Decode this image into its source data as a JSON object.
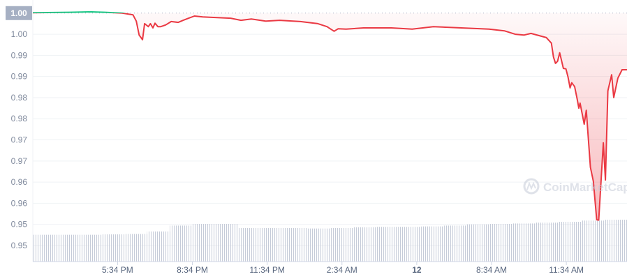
{
  "chart_data": {
    "type": "line",
    "title": "",
    "xlabel": "",
    "ylabel": "",
    "reference_price": 1.005,
    "reference_label": "1.00",
    "ylim": [
      0.9462,
      1.0081
    ],
    "xlim": [
      "14:10",
      "14:00"
    ],
    "grid": true,
    "y_ticks": [
      {
        "value": 1.0,
        "label": "1.00"
      },
      {
        "value": 0.995,
        "label": "0.99"
      },
      {
        "value": 0.99,
        "label": "0.99"
      },
      {
        "value": 0.985,
        "label": "0.98"
      },
      {
        "value": 0.98,
        "label": "0.98"
      },
      {
        "value": 0.975,
        "label": "0.97"
      },
      {
        "value": 0.97,
        "label": "0.97"
      },
      {
        "value": 0.965,
        "label": "0.96"
      },
      {
        "value": 0.96,
        "label": "0.96"
      },
      {
        "value": 0.955,
        "label": "0.95"
      },
      {
        "value": 0.95,
        "label": "0.95"
      }
    ],
    "x_ticks": [
      {
        "time": "17:34",
        "label": "5:34 PM"
      },
      {
        "time": "20:34",
        "label": "8:34 PM"
      },
      {
        "time": "23:34",
        "label": "11:34 PM"
      },
      {
        "time": "02:34",
        "label": "2:34 AM"
      },
      {
        "time": "05:34",
        "label": "12"
      },
      {
        "time": "08:34",
        "label": "8:34 AM"
      },
      {
        "time": "11:34",
        "label": "11:34 AM"
      }
    ],
    "colors": {
      "up": "#16c784",
      "down": "#ea3943",
      "volume": "#c5cbd8",
      "grid": "#eff2f5"
    },
    "points": [
      [
        "14:10",
        1.0051
      ],
      [
        "15:39",
        1.0052
      ],
      [
        "16:30",
        1.0053
      ],
      [
        "17:03",
        1.0052
      ],
      [
        "17:45",
        1.005
      ],
      [
        "18:11",
        1.0046
      ],
      [
        "18:19",
        1.0031
      ],
      [
        "18:26",
        0.9998
      ],
      [
        "18:34",
        0.9987
      ],
      [
        "18:39",
        1.0025
      ],
      [
        "18:48",
        1.0018
      ],
      [
        "18:53",
        1.0025
      ],
      [
        "18:59",
        1.0015
      ],
      [
        "19:04",
        1.0026
      ],
      [
        "19:11",
        1.0018
      ],
      [
        "19:18",
        1.0018
      ],
      [
        "19:30",
        1.0022
      ],
      [
        "19:43",
        1.003
      ],
      [
        "20:00",
        1.0028
      ],
      [
        "20:12",
        1.0033
      ],
      [
        "20:25",
        1.0038
      ],
      [
        "20:39",
        1.0043
      ],
      [
        "20:59",
        1.0041
      ],
      [
        "21:16",
        1.004
      ],
      [
        "22:06",
        1.0038
      ],
      [
        "22:31",
        1.0033
      ],
      [
        "22:56",
        1.0036
      ],
      [
        "23:30",
        1.0031
      ],
      [
        "00:04",
        1.0033
      ],
      [
        "00:54",
        1.003
      ],
      [
        "01:36",
        1.0025
      ],
      [
        "01:58",
        1.0018
      ],
      [
        "02:15",
        1.0007
      ],
      [
        "02:25",
        1.0013
      ],
      [
        "02:44",
        1.0012
      ],
      [
        "03:26",
        1.0015
      ],
      [
        "04:33",
        1.0015
      ],
      [
        "05:23",
        1.0012
      ],
      [
        "06:14",
        1.0018
      ],
      [
        "07:21",
        1.0015
      ],
      [
        "08:28",
        1.0012
      ],
      [
        "09:05",
        1.0008
      ],
      [
        "09:31",
        1.0
      ],
      [
        "09:52",
        0.9998
      ],
      [
        "10:09",
        1.0002
      ],
      [
        "10:46",
        0.9992
      ],
      [
        "10:58",
        0.9979
      ],
      [
        "11:03",
        0.9946
      ],
      [
        "11:08",
        0.9931
      ],
      [
        "11:13",
        0.9936
      ],
      [
        "11:18",
        0.9956
      ],
      [
        "11:27",
        0.9919
      ],
      [
        "11:33",
        0.9918
      ],
      [
        "11:38",
        0.9899
      ],
      [
        "11:43",
        0.9873
      ],
      [
        "11:47",
        0.9885
      ],
      [
        "11:54",
        0.9876
      ],
      [
        "12:00",
        0.9847
      ],
      [
        "12:04",
        0.9825
      ],
      [
        "12:07",
        0.9837
      ],
      [
        "12:17",
        0.9787
      ],
      [
        "12:22",
        0.982
      ],
      [
        "12:32",
        0.9685
      ],
      [
        "12:39",
        0.9652
      ],
      [
        "12:47",
        0.9561
      ],
      [
        "12:52",
        0.956
      ],
      [
        "13:03",
        0.9743
      ],
      [
        "13:08",
        0.9655
      ],
      [
        "13:14",
        0.9866
      ],
      [
        "13:23",
        0.9904
      ],
      [
        "13:28",
        0.985
      ],
      [
        "13:38",
        0.9896
      ],
      [
        "13:48",
        0.9916
      ],
      [
        "14:00",
        0.9916
      ]
    ],
    "volume_relative": [
      0.64,
      0.64,
      0.64,
      0.65,
      0.66,
      0.72,
      0.86,
      0.9,
      0.9,
      0.8,
      0.8,
      0.8,
      0.79,
      0.8,
      0.82,
      0.83,
      0.83,
      0.84,
      0.86,
      0.89,
      0.9,
      0.91,
      0.93,
      0.95,
      0.98,
      1.0
    ]
  },
  "watermark": "CoinMarketCap"
}
